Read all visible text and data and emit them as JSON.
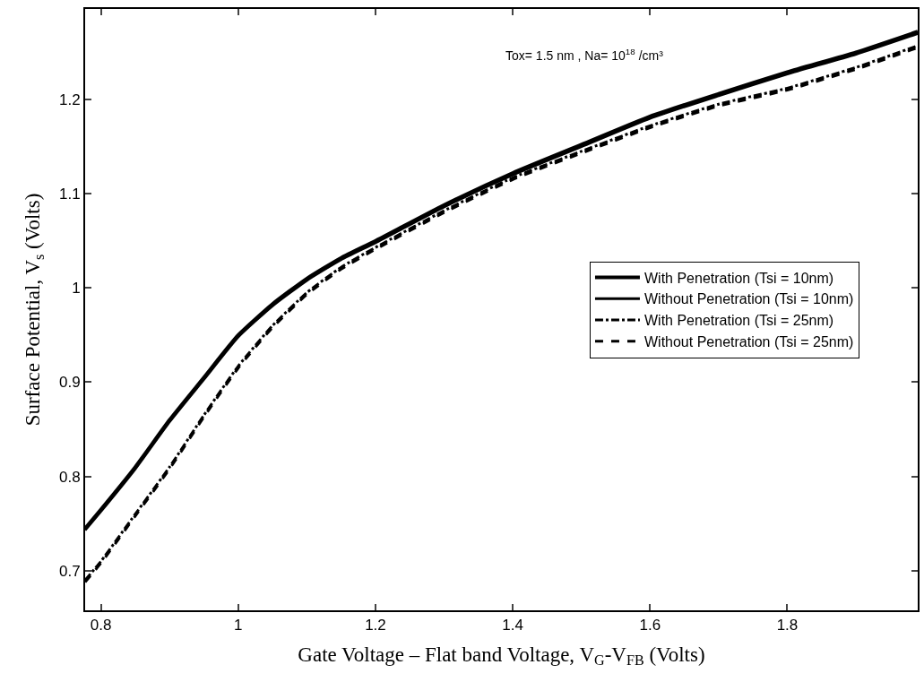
{
  "chart_data": {
    "type": "line",
    "xlabel": "Gate Voltage – Flat band Voltage, V$_{G}$-V$_{FB}$ (Volts)",
    "ylabel": "Surface Potential, V$_{s}$ (Volts)",
    "annotations": [
      "Tox= 1.5 nm , Na= 10$^{18}$ /cm³"
    ],
    "x": [
      0.777,
      0.8,
      0.85,
      0.9,
      0.95,
      1.0,
      1.05,
      1.1,
      1.15,
      1.2,
      1.3,
      1.4,
      1.5,
      1.6,
      1.7,
      1.8,
      1.9,
      1.99
    ],
    "series": [
      {
        "name": "With Penetration (Tsi = 10nm)",
        "color": "#000000",
        "line_style": "solid",
        "values": [
          0.745,
          0.765,
          0.81,
          0.86,
          0.905,
          0.95,
          0.983,
          1.01,
          1.032,
          1.05,
          1.088,
          1.122,
          1.152,
          1.182,
          1.206,
          1.229,
          1.25,
          1.272
        ]
      },
      {
        "name": "Without Penetration (Tsi = 10nm)",
        "color": "#000000",
        "line_style": "solid",
        "values": [
          0.743,
          0.763,
          0.808,
          0.858,
          0.903,
          0.948,
          0.981,
          1.008,
          1.03,
          1.048,
          1.086,
          1.12,
          1.15,
          1.18,
          1.204,
          1.227,
          1.248,
          1.27
        ]
      },
      {
        "name": "With Penetration (Tsi = 25nm)",
        "color": "#000000",
        "line_style": "dashdot",
        "values": [
          0.69,
          0.71,
          0.76,
          0.81,
          0.865,
          0.917,
          0.96,
          0.995,
          1.022,
          1.043,
          1.082,
          1.117,
          1.145,
          1.172,
          1.195,
          1.212,
          1.234,
          1.257
        ]
      },
      {
        "name": "Without Penetration (Tsi = 25nm)",
        "color": "#000000",
        "line_style": "dashed",
        "values": [
          0.688,
          0.708,
          0.758,
          0.808,
          0.863,
          0.915,
          0.958,
          0.993,
          1.02,
          1.041,
          1.08,
          1.115,
          1.143,
          1.17,
          1.193,
          1.21,
          1.232,
          1.255
        ]
      }
    ],
    "xlim": [
      0.777,
      1.99
    ],
    "xticks": [
      0.8,
      1,
      1.2,
      1.4,
      1.6,
      1.8
    ],
    "ylim": [
      0.658,
      1.296
    ],
    "yticks": [
      0.7,
      0.8,
      0.9,
      1,
      1.1,
      1.2
    ],
    "legend": "right"
  }
}
